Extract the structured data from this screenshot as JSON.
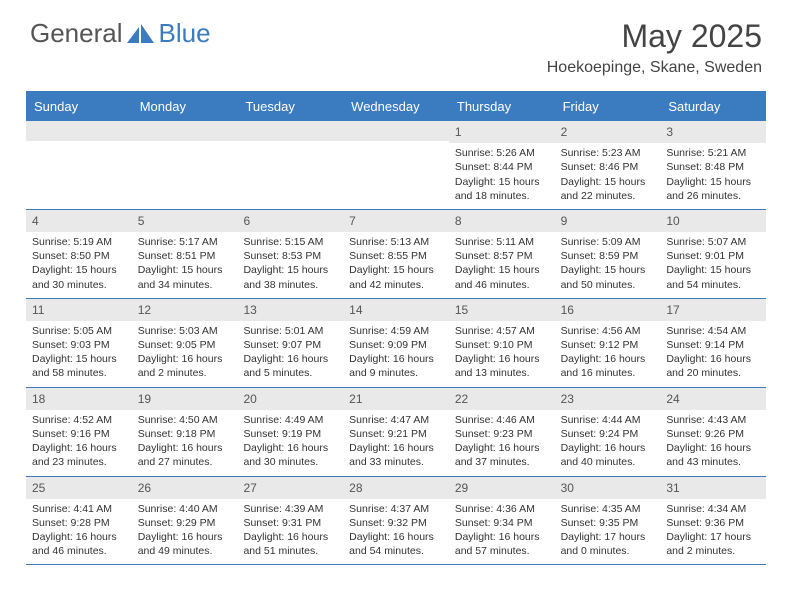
{
  "brand": {
    "part1": "General",
    "part2": "Blue"
  },
  "title": "May 2025",
  "location": "Hoekoepinge, Skane, Sweden",
  "colors": {
    "accent": "#3b7bbf",
    "header_text": "#ffffff",
    "daynum_bg": "#e9e9e9",
    "text": "#333333",
    "border": "#3b7bbf"
  },
  "dow": [
    "Sunday",
    "Monday",
    "Tuesday",
    "Wednesday",
    "Thursday",
    "Friday",
    "Saturday"
  ],
  "weeks": [
    [
      null,
      null,
      null,
      null,
      {
        "n": "1",
        "sr": "Sunrise: 5:26 AM",
        "ss": "Sunset: 8:44 PM",
        "dl": "Daylight: 15 hours and 18 minutes."
      },
      {
        "n": "2",
        "sr": "Sunrise: 5:23 AM",
        "ss": "Sunset: 8:46 PM",
        "dl": "Daylight: 15 hours and 22 minutes."
      },
      {
        "n": "3",
        "sr": "Sunrise: 5:21 AM",
        "ss": "Sunset: 8:48 PM",
        "dl": "Daylight: 15 hours and 26 minutes."
      }
    ],
    [
      {
        "n": "4",
        "sr": "Sunrise: 5:19 AM",
        "ss": "Sunset: 8:50 PM",
        "dl": "Daylight: 15 hours and 30 minutes."
      },
      {
        "n": "5",
        "sr": "Sunrise: 5:17 AM",
        "ss": "Sunset: 8:51 PM",
        "dl": "Daylight: 15 hours and 34 minutes."
      },
      {
        "n": "6",
        "sr": "Sunrise: 5:15 AM",
        "ss": "Sunset: 8:53 PM",
        "dl": "Daylight: 15 hours and 38 minutes."
      },
      {
        "n": "7",
        "sr": "Sunrise: 5:13 AM",
        "ss": "Sunset: 8:55 PM",
        "dl": "Daylight: 15 hours and 42 minutes."
      },
      {
        "n": "8",
        "sr": "Sunrise: 5:11 AM",
        "ss": "Sunset: 8:57 PM",
        "dl": "Daylight: 15 hours and 46 minutes."
      },
      {
        "n": "9",
        "sr": "Sunrise: 5:09 AM",
        "ss": "Sunset: 8:59 PM",
        "dl": "Daylight: 15 hours and 50 minutes."
      },
      {
        "n": "10",
        "sr": "Sunrise: 5:07 AM",
        "ss": "Sunset: 9:01 PM",
        "dl": "Daylight: 15 hours and 54 minutes."
      }
    ],
    [
      {
        "n": "11",
        "sr": "Sunrise: 5:05 AM",
        "ss": "Sunset: 9:03 PM",
        "dl": "Daylight: 15 hours and 58 minutes."
      },
      {
        "n": "12",
        "sr": "Sunrise: 5:03 AM",
        "ss": "Sunset: 9:05 PM",
        "dl": "Daylight: 16 hours and 2 minutes."
      },
      {
        "n": "13",
        "sr": "Sunrise: 5:01 AM",
        "ss": "Sunset: 9:07 PM",
        "dl": "Daylight: 16 hours and 5 minutes."
      },
      {
        "n": "14",
        "sr": "Sunrise: 4:59 AM",
        "ss": "Sunset: 9:09 PM",
        "dl": "Daylight: 16 hours and 9 minutes."
      },
      {
        "n": "15",
        "sr": "Sunrise: 4:57 AM",
        "ss": "Sunset: 9:10 PM",
        "dl": "Daylight: 16 hours and 13 minutes."
      },
      {
        "n": "16",
        "sr": "Sunrise: 4:56 AM",
        "ss": "Sunset: 9:12 PM",
        "dl": "Daylight: 16 hours and 16 minutes."
      },
      {
        "n": "17",
        "sr": "Sunrise: 4:54 AM",
        "ss": "Sunset: 9:14 PM",
        "dl": "Daylight: 16 hours and 20 minutes."
      }
    ],
    [
      {
        "n": "18",
        "sr": "Sunrise: 4:52 AM",
        "ss": "Sunset: 9:16 PM",
        "dl": "Daylight: 16 hours and 23 minutes."
      },
      {
        "n": "19",
        "sr": "Sunrise: 4:50 AM",
        "ss": "Sunset: 9:18 PM",
        "dl": "Daylight: 16 hours and 27 minutes."
      },
      {
        "n": "20",
        "sr": "Sunrise: 4:49 AM",
        "ss": "Sunset: 9:19 PM",
        "dl": "Daylight: 16 hours and 30 minutes."
      },
      {
        "n": "21",
        "sr": "Sunrise: 4:47 AM",
        "ss": "Sunset: 9:21 PM",
        "dl": "Daylight: 16 hours and 33 minutes."
      },
      {
        "n": "22",
        "sr": "Sunrise: 4:46 AM",
        "ss": "Sunset: 9:23 PM",
        "dl": "Daylight: 16 hours and 37 minutes."
      },
      {
        "n": "23",
        "sr": "Sunrise: 4:44 AM",
        "ss": "Sunset: 9:24 PM",
        "dl": "Daylight: 16 hours and 40 minutes."
      },
      {
        "n": "24",
        "sr": "Sunrise: 4:43 AM",
        "ss": "Sunset: 9:26 PM",
        "dl": "Daylight: 16 hours and 43 minutes."
      }
    ],
    [
      {
        "n": "25",
        "sr": "Sunrise: 4:41 AM",
        "ss": "Sunset: 9:28 PM",
        "dl": "Daylight: 16 hours and 46 minutes."
      },
      {
        "n": "26",
        "sr": "Sunrise: 4:40 AM",
        "ss": "Sunset: 9:29 PM",
        "dl": "Daylight: 16 hours and 49 minutes."
      },
      {
        "n": "27",
        "sr": "Sunrise: 4:39 AM",
        "ss": "Sunset: 9:31 PM",
        "dl": "Daylight: 16 hours and 51 minutes."
      },
      {
        "n": "28",
        "sr": "Sunrise: 4:37 AM",
        "ss": "Sunset: 9:32 PM",
        "dl": "Daylight: 16 hours and 54 minutes."
      },
      {
        "n": "29",
        "sr": "Sunrise: 4:36 AM",
        "ss": "Sunset: 9:34 PM",
        "dl": "Daylight: 16 hours and 57 minutes."
      },
      {
        "n": "30",
        "sr": "Sunrise: 4:35 AM",
        "ss": "Sunset: 9:35 PM",
        "dl": "Daylight: 17 hours and 0 minutes."
      },
      {
        "n": "31",
        "sr": "Sunrise: 4:34 AM",
        "ss": "Sunset: 9:36 PM",
        "dl": "Daylight: 17 hours and 2 minutes."
      }
    ]
  ]
}
